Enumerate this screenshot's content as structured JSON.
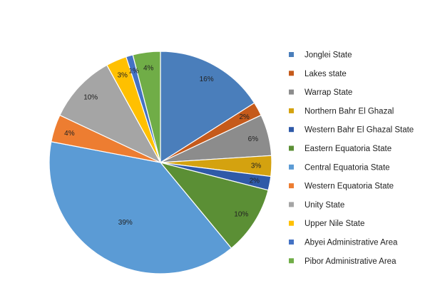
{
  "chart_data": {
    "type": "pie",
    "title": "",
    "legend_position": "right",
    "slices": [
      {
        "label": "Jonglei State",
        "value": 16,
        "value_label": "16%",
        "color": "#4a7ebb"
      },
      {
        "label": "Lakes  state",
        "value": 2,
        "value_label": "2%",
        "color": "#c55a1b"
      },
      {
        "label": "Warrap State",
        "value": 6,
        "value_label": "6%",
        "color": "#8c8c8c"
      },
      {
        "label": "Northern Bahr El Ghazal",
        "value": 3,
        "value_label": "3%",
        "color": "#d4a20f"
      },
      {
        "label": "Western Bahr El Ghazal State",
        "value": 2,
        "value_label": "2%",
        "color": "#2f5aa8"
      },
      {
        "label": "Eastern   Equatoria  State",
        "value": 10,
        "value_label": "10%",
        "color": "#5b8f35"
      },
      {
        "label": "Central Equatoria  State",
        "value": 39,
        "value_label": "39%",
        "color": "#5b9bd5"
      },
      {
        "label": "Western Equatoria  State",
        "value": 4,
        "value_label": "4%",
        "color": "#ed7d31"
      },
      {
        "label": "Unity State",
        "value": 10,
        "value_label": "10%",
        "color": "#a5a5a5"
      },
      {
        "label": "Upper Nile State",
        "value": 3,
        "value_label": "3%",
        "color": "#ffc000"
      },
      {
        "label": "Abyei Administrative    Area",
        "value": 1,
        "value_label": "1%",
        "color": "#4472c4"
      },
      {
        "label": "Pibor Administrative  Area",
        "value": 4,
        "value_label": "4%",
        "color": "#70ad47"
      }
    ]
  }
}
